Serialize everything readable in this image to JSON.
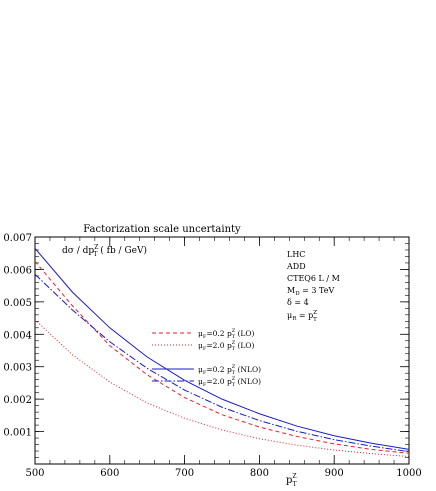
{
  "chart_data": {
    "type": "line",
    "title": "Factorization scale uncertainty",
    "ylabel": "dσ / dp",
    "ylabel_sup": "Z",
    "ylabel_sub": "T",
    "ylabel_unit": "( fb / GeV)",
    "xlabel": "p",
    "xlabel_sup": "Z",
    "xlabel_sub": "T",
    "xlim": [
      500,
      1000
    ],
    "ylim": [
      0,
      0.007
    ],
    "x_ticks": [
      "500",
      "600",
      "700",
      "800",
      "900",
      "1000"
    ],
    "y_ticks": [
      "0.001",
      "0.002",
      "0.003",
      "0.004",
      "0.005",
      "0.006",
      "0.007"
    ],
    "info": [
      "LHC",
      "ADD",
      "CTEQ6 L / M",
      "M",
      "δ = 4",
      "μ"
    ],
    "info_mD_sub": "D",
    "info_mD_rest": " = 3 TeV",
    "info_mu_sub": "R",
    "info_mu_rest": " = p",
    "info_mu_sup": "Z",
    "info_mu_subT": "T",
    "grid": false,
    "legend_position": "right",
    "x": [
      500,
      550,
      600,
      650,
      700,
      750,
      800,
      850,
      900,
      950,
      1000
    ],
    "series": [
      {
        "name": "μF=0.2 p (LO)",
        "label_mu": "μ",
        "label_sub": "F",
        "label_mid": "=0.2 p",
        "label_sup": "Z",
        "label_sub2": "T",
        "label_end": " (LO)",
        "color": "#e8202a",
        "dash": "dashed",
        "values": [
          0.00625,
          0.00488,
          0.00365,
          0.00275,
          0.00205,
          0.00152,
          0.00114,
          0.00085,
          0.00062,
          0.00045,
          0.00033
        ]
      },
      {
        "name": "μF=2.0 p (LO)",
        "label_mu": "μ",
        "label_sub": "F",
        "label_mid": "=2.0 p",
        "label_sup": "Z",
        "label_sub2": "T",
        "label_end": " (LO)",
        "color": "#e8202a",
        "dash": "dotted",
        "values": [
          0.00445,
          0.00337,
          0.00253,
          0.00188,
          0.00141,
          0.00105,
          0.00078,
          0.00058,
          0.00043,
          0.00032,
          0.00023
        ]
      },
      {
        "name": "μF=0.2 p (NLO)",
        "label_mu": "μ",
        "label_sub": "F",
        "label_mid": "=0.2 p",
        "label_sup": "Z",
        "label_sub2": "T",
        "label_end": " (NLO)",
        "color": "#1a1acc",
        "dash": "solid",
        "values": [
          0.00665,
          0.0053,
          0.0042,
          0.0033,
          0.00258,
          0.002,
          0.00155,
          0.00117,
          0.00087,
          0.00064,
          0.00045
        ]
      },
      {
        "name": "μF=2.0 p (NLO)",
        "label_mu": "μ",
        "label_sub": "F",
        "label_mid": "=2.0 p",
        "label_sup": "Z",
        "label_sub2": "T",
        "label_end": " (NLO)",
        "color": "#1a1acc",
        "dash": "dashdot",
        "values": [
          0.00585,
          0.00475,
          0.00377,
          0.00295,
          0.00228,
          0.00175,
          0.00134,
          0.00101,
          0.00075,
          0.00055,
          0.00038
        ]
      }
    ]
  }
}
